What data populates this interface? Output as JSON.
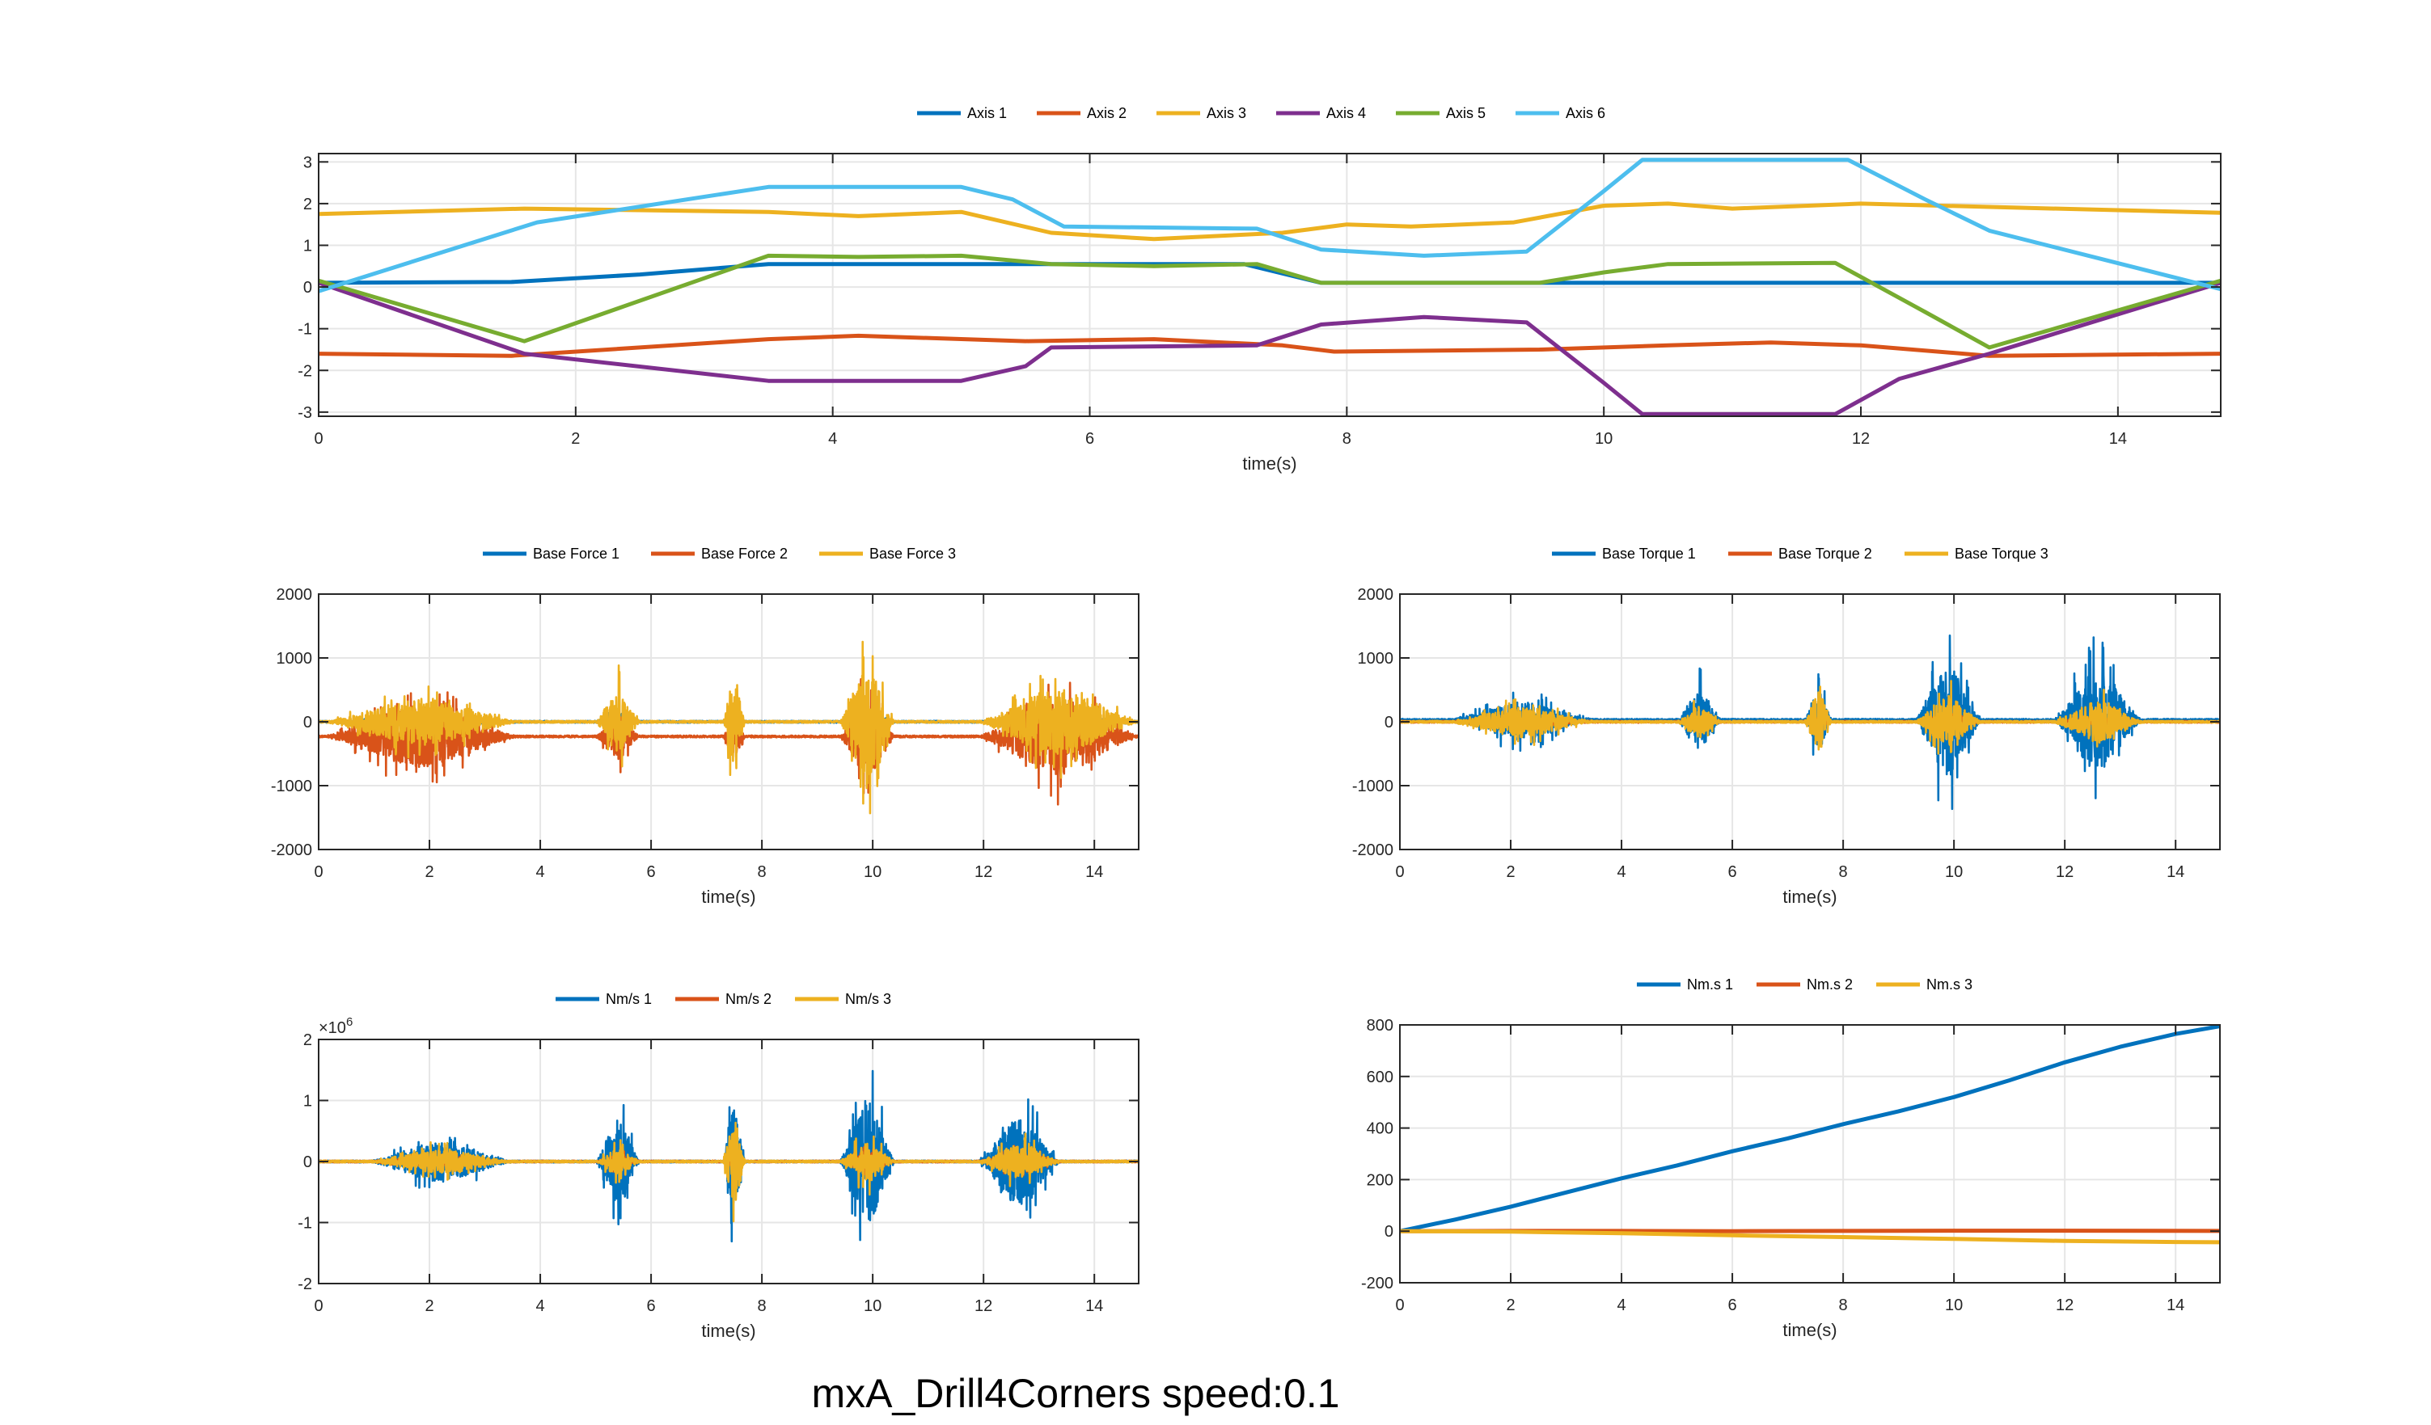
{
  "figure": {
    "suptitle": "mxA_Drill4Corners  speed:0.1",
    "colors": [
      "#0072BD",
      "#D95319",
      "#EDB120",
      "#7E2F8E",
      "#77AC30",
      "#4DBEEE"
    ]
  },
  "chart_data": [
    {
      "type": "line",
      "xlabel": "time(s)",
      "xlim": [
        0,
        14.8
      ],
      "ylim": [
        -3.1,
        3.2
      ],
      "xticks": [
        0,
        2,
        4,
        6,
        8,
        10,
        12,
        14
      ],
      "yticks": [
        -3,
        -2,
        -1,
        0,
        1,
        2,
        3
      ],
      "grid": true,
      "legend_position": "top-center",
      "series": [
        {
          "name": "Axis 1",
          "color": "#0072BD",
          "points": [
            [
              0,
              0.1
            ],
            [
              1.5,
              0.12
            ],
            [
              2.5,
              0.3
            ],
            [
              3.5,
              0.55
            ],
            [
              5,
              0.55
            ],
            [
              6,
              0.55
            ],
            [
              7.2,
              0.55
            ],
            [
              7.8,
              0.1
            ],
            [
              14.8,
              0.1
            ]
          ]
        },
        {
          "name": "Axis 2",
          "color": "#D95319",
          "points": [
            [
              0,
              -1.6
            ],
            [
              1.5,
              -1.65
            ],
            [
              3.5,
              -1.25
            ],
            [
              4.2,
              -1.17
            ],
            [
              5.5,
              -1.3
            ],
            [
              6.5,
              -1.25
            ],
            [
              7.5,
              -1.4
            ],
            [
              7.9,
              -1.55
            ],
            [
              9.5,
              -1.5
            ],
            [
              10.5,
              -1.4
            ],
            [
              11.3,
              -1.33
            ],
            [
              12,
              -1.4
            ],
            [
              13,
              -1.65
            ],
            [
              14.8,
              -1.6
            ]
          ]
        },
        {
          "name": "Axis 3",
          "color": "#EDB120",
          "points": [
            [
              0,
              1.75
            ],
            [
              1.6,
              1.88
            ],
            [
              3.5,
              1.8
            ],
            [
              4.2,
              1.7
            ],
            [
              5,
              1.8
            ],
            [
              5.7,
              1.3
            ],
            [
              6.5,
              1.15
            ],
            [
              7.5,
              1.3
            ],
            [
              8,
              1.5
            ],
            [
              8.5,
              1.45
            ],
            [
              9.3,
              1.55
            ],
            [
              10,
              1.95
            ],
            [
              10.5,
              2
            ],
            [
              11,
              1.88
            ],
            [
              12,
              2
            ],
            [
              13,
              1.92
            ],
            [
              14.8,
              1.78
            ]
          ]
        },
        {
          "name": "Axis 4",
          "color": "#7E2F8E",
          "points": [
            [
              0,
              0.1
            ],
            [
              1.6,
              -1.6
            ],
            [
              3.5,
              -2.25
            ],
            [
              5,
              -2.25
            ],
            [
              5.5,
              -1.9
            ],
            [
              5.7,
              -1.45
            ],
            [
              7.3,
              -1.4
            ],
            [
              7.8,
              -0.9
            ],
            [
              8.6,
              -0.72
            ],
            [
              9.4,
              -0.85
            ],
            [
              10,
              -2.3
            ],
            [
              10.3,
              -3.05
            ],
            [
              11.8,
              -3.05
            ],
            [
              12.3,
              -2.2
            ],
            [
              13,
              -1.6
            ],
            [
              14.8,
              0.1
            ]
          ]
        },
        {
          "name": "Axis 5",
          "color": "#77AC30",
          "points": [
            [
              0,
              0.15
            ],
            [
              1.6,
              -1.3
            ],
            [
              3.5,
              0.75
            ],
            [
              4.2,
              0.72
            ],
            [
              5,
              0.75
            ],
            [
              5.7,
              0.55
            ],
            [
              6.5,
              0.5
            ],
            [
              7.3,
              0.55
            ],
            [
              7.8,
              0.1
            ],
            [
              9.5,
              0.1
            ],
            [
              10,
              0.35
            ],
            [
              10.5,
              0.55
            ],
            [
              11.8,
              0.58
            ],
            [
              12.5,
              -0.6
            ],
            [
              13,
              -1.45
            ],
            [
              14.8,
              0.15
            ]
          ]
        },
        {
          "name": "Axis 6",
          "color": "#4DBEEE",
          "points": [
            [
              0,
              -0.1
            ],
            [
              1.7,
              1.55
            ],
            [
              3.5,
              2.4
            ],
            [
              5,
              2.4
            ],
            [
              5.4,
              2.1
            ],
            [
              5.8,
              1.45
            ],
            [
              7.3,
              1.4
            ],
            [
              7.8,
              0.9
            ],
            [
              8.6,
              0.75
            ],
            [
              9.4,
              0.85
            ],
            [
              10,
              2.3
            ],
            [
              10.3,
              3.05
            ],
            [
              11.9,
              3.05
            ],
            [
              12.5,
              2.1
            ],
            [
              13,
              1.35
            ],
            [
              14.8,
              -0.05
            ]
          ]
        }
      ]
    },
    {
      "type": "line",
      "xlabel": "time(s)",
      "xlim": [
        0,
        14.8
      ],
      "ylim": [
        -2000,
        2000
      ],
      "xticks": [
        0,
        2,
        4,
        6,
        8,
        10,
        12,
        14
      ],
      "yticks": [
        -2000,
        -1000,
        0,
        1000,
        2000
      ],
      "grid": true,
      "legend_position": "top-center",
      "series": [
        {
          "name": "Base Force 1",
          "color": "#0072BD",
          "baseline": 0
        },
        {
          "name": "Base Force 2",
          "color": "#D95319",
          "baseline": -230
        },
        {
          "name": "Base Force 3",
          "color": "#EDB120",
          "baseline": 0
        }
      ],
      "bursts": [
        {
          "t0": 0.1,
          "t1": 3.6,
          "amps": [
            150,
            900,
            650
          ]
        },
        {
          "t0": 5.0,
          "t1": 5.8,
          "amps": [
            250,
            650,
            900
          ]
        },
        {
          "t0": 7.3,
          "t1": 7.7,
          "amps": [
            250,
            550,
            1300
          ]
        },
        {
          "t0": 9.4,
          "t1": 10.4,
          "amps": [
            350,
            1200,
            1600
          ]
        },
        {
          "t0": 11.9,
          "t1": 14.8,
          "amps": [
            250,
            1100,
            950
          ]
        }
      ]
    },
    {
      "type": "line",
      "xlabel": "time(s)",
      "xlim": [
        0,
        14.8
      ],
      "ylim": [
        -2000,
        2000
      ],
      "xticks": [
        0,
        2,
        4,
        6,
        8,
        10,
        12,
        14
      ],
      "yticks": [
        -2000,
        -1000,
        0,
        1000,
        2000
      ],
      "grid": true,
      "legend_position": "top-center",
      "series": [
        {
          "name": "Base Torque 1",
          "color": "#0072BD",
          "baseline": 30
        },
        {
          "name": "Base Torque 2",
          "color": "#D95319",
          "baseline": 0
        },
        {
          "name": "Base Torque 3",
          "color": "#EDB120",
          "baseline": 0
        }
      ],
      "bursts": [
        {
          "t0": 0.9,
          "t1": 3.5,
          "amps": [
            520,
            120,
            420
          ]
        },
        {
          "t0": 5.0,
          "t1": 5.8,
          "amps": [
            850,
            120,
            450
          ]
        },
        {
          "t0": 7.3,
          "t1": 7.8,
          "amps": [
            850,
            120,
            900
          ]
        },
        {
          "t0": 9.3,
          "t1": 10.5,
          "amps": [
            1650,
            150,
            700
          ]
        },
        {
          "t0": 11.8,
          "t1": 13.4,
          "amps": [
            1500,
            120,
            600
          ]
        }
      ]
    },
    {
      "type": "line",
      "xlabel": "time(s)",
      "exponent_label": "×10",
      "exponent_power": "6",
      "xlim": [
        0,
        14.8
      ],
      "ylim": [
        -2,
        2
      ],
      "xticks": [
        0,
        2,
        4,
        6,
        8,
        10,
        12,
        14
      ],
      "yticks": [
        -2,
        -1,
        0,
        1,
        2
      ],
      "grid": true,
      "legend_position": "top-center",
      "series": [
        {
          "name": "Nm/s 1",
          "color": "#0072BD",
          "baseline": 0
        },
        {
          "name": "Nm/s 2",
          "color": "#D95319",
          "baseline": 0
        },
        {
          "name": "Nm/s 3",
          "color": "#EDB120",
          "baseline": 0
        }
      ],
      "bursts": [
        {
          "t0": 0.9,
          "t1": 3.5,
          "amps": [
            0.6,
            0.15,
            0.35
          ]
        },
        {
          "t0": 5.0,
          "t1": 5.8,
          "amps": [
            1.3,
            0.2,
            0.4
          ]
        },
        {
          "t0": 7.3,
          "t1": 7.7,
          "amps": [
            1.6,
            0.25,
            1.3
          ]
        },
        {
          "t0": 9.4,
          "t1": 10.4,
          "amps": [
            1.9,
            0.3,
            0.6
          ]
        },
        {
          "t0": 11.9,
          "t1": 13.4,
          "amps": [
            1.3,
            0.3,
            0.5
          ]
        }
      ]
    },
    {
      "type": "line",
      "xlabel": "time(s)",
      "xlim": [
        0,
        14.8
      ],
      "ylim": [
        -200,
        800
      ],
      "xticks": [
        0,
        2,
        4,
        6,
        8,
        10,
        12,
        14
      ],
      "yticks": [
        -200,
        0,
        200,
        400,
        600,
        800
      ],
      "grid": true,
      "legend_position": "top-center",
      "series": [
        {
          "name": "Nm.s 1",
          "color": "#0072BD",
          "points": [
            [
              0,
              0
            ],
            [
              1,
              45
            ],
            [
              2,
              95
            ],
            [
              3,
              150
            ],
            [
              4,
              205
            ],
            [
              5,
              255
            ],
            [
              6,
              310
            ],
            [
              7,
              360
            ],
            [
              8,
              415
            ],
            [
              9,
              465
            ],
            [
              10,
              520
            ],
            [
              11,
              585
            ],
            [
              12,
              655
            ],
            [
              13,
              715
            ],
            [
              14,
              765
            ],
            [
              14.8,
              795
            ]
          ]
        },
        {
          "name": "Nm.s 2",
          "color": "#D95319",
          "points": [
            [
              0,
              0
            ],
            [
              2,
              1
            ],
            [
              4,
              1
            ],
            [
              6,
              0
            ],
            [
              8,
              1
            ],
            [
              10,
              2
            ],
            [
              12,
              2
            ],
            [
              14.8,
              1
            ]
          ]
        },
        {
          "name": "Nm.s 3",
          "color": "#EDB120",
          "points": [
            [
              0,
              0
            ],
            [
              2,
              -2
            ],
            [
              4,
              -8
            ],
            [
              6,
              -16
            ],
            [
              8,
              -23
            ],
            [
              10,
              -30
            ],
            [
              12,
              -38
            ],
            [
              14,
              -42
            ],
            [
              14.8,
              -43
            ]
          ]
        }
      ]
    }
  ]
}
